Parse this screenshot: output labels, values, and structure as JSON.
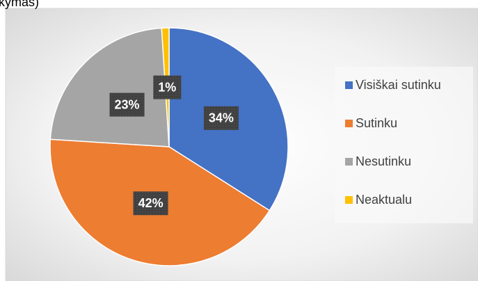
{
  "chart_data": {
    "type": "pie",
    "title": "kymas)",
    "categories": [
      "Visiškai sutinku",
      "Sutinku",
      "Nesutinku",
      "Neaktualu"
    ],
    "values": [
      34,
      42,
      23,
      1
    ],
    "value_labels": [
      "34%",
      "42%",
      "23%",
      "1%"
    ],
    "colors": [
      "#4472c4",
      "#ed7d31",
      "#a5a5a5",
      "#ffc000"
    ],
    "legend": "right"
  }
}
